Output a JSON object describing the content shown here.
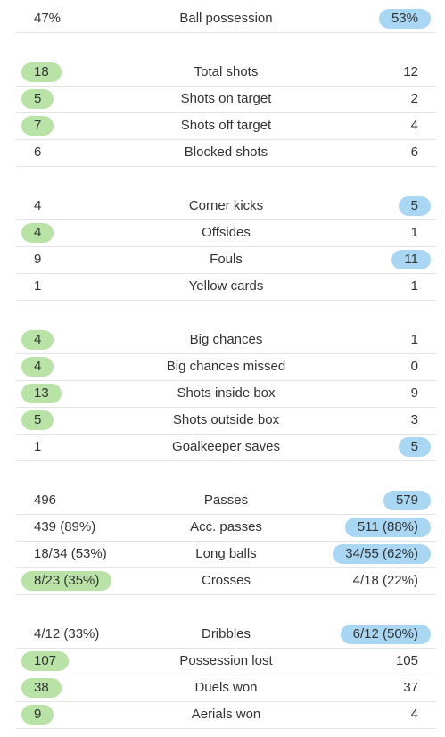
{
  "colors": {
    "home_highlight": "#b9e3a6",
    "away_highlight": "#a9d6f3",
    "divider": "#e4e4e4"
  },
  "groups": [
    {
      "rows": [
        {
          "label": "Ball possession",
          "home": "47%",
          "away": "53%",
          "leader": "away"
        }
      ]
    },
    {
      "rows": [
        {
          "label": "Total shots",
          "home": "18",
          "away": "12",
          "leader": "home"
        },
        {
          "label": "Shots on target",
          "home": "5",
          "away": "2",
          "leader": "home"
        },
        {
          "label": "Shots off target",
          "home": "7",
          "away": "4",
          "leader": "home"
        },
        {
          "label": "Blocked shots",
          "home": "6",
          "away": "6",
          "leader": "none"
        }
      ]
    },
    {
      "rows": [
        {
          "label": "Corner kicks",
          "home": "4",
          "away": "5",
          "leader": "away"
        },
        {
          "label": "Offsides",
          "home": "4",
          "away": "1",
          "leader": "home"
        },
        {
          "label": "Fouls",
          "home": "9",
          "away": "11",
          "leader": "away"
        },
        {
          "label": "Yellow cards",
          "home": "1",
          "away": "1",
          "leader": "none"
        }
      ]
    },
    {
      "rows": [
        {
          "label": "Big chances",
          "home": "4",
          "away": "1",
          "leader": "home"
        },
        {
          "label": "Big chances missed",
          "home": "4",
          "away": "0",
          "leader": "home"
        },
        {
          "label": "Shots inside box",
          "home": "13",
          "away": "9",
          "leader": "home"
        },
        {
          "label": "Shots outside box",
          "home": "5",
          "away": "3",
          "leader": "home"
        },
        {
          "label": "Goalkeeper saves",
          "home": "1",
          "away": "5",
          "leader": "away"
        }
      ]
    },
    {
      "rows": [
        {
          "label": "Passes",
          "home": "496",
          "away": "579",
          "leader": "away"
        },
        {
          "label": "Acc. passes",
          "home": "439 (89%)",
          "away": "511 (88%)",
          "leader": "away"
        },
        {
          "label": "Long balls",
          "home": "18/34 (53%)",
          "away": "34/55 (62%)",
          "leader": "away"
        },
        {
          "label": "Crosses",
          "home": "8/23 (35%)",
          "away": "4/18 (22%)",
          "leader": "home"
        }
      ]
    },
    {
      "rows": [
        {
          "label": "Dribbles",
          "home": "4/12 (33%)",
          "away": "6/12 (50%)",
          "leader": "away"
        },
        {
          "label": "Possession lost",
          "home": "107",
          "away": "105",
          "leader": "home"
        },
        {
          "label": "Duels won",
          "home": "38",
          "away": "37",
          "leader": "home"
        },
        {
          "label": "Aerials won",
          "home": "9",
          "away": "4",
          "leader": "home"
        }
      ]
    }
  ]
}
